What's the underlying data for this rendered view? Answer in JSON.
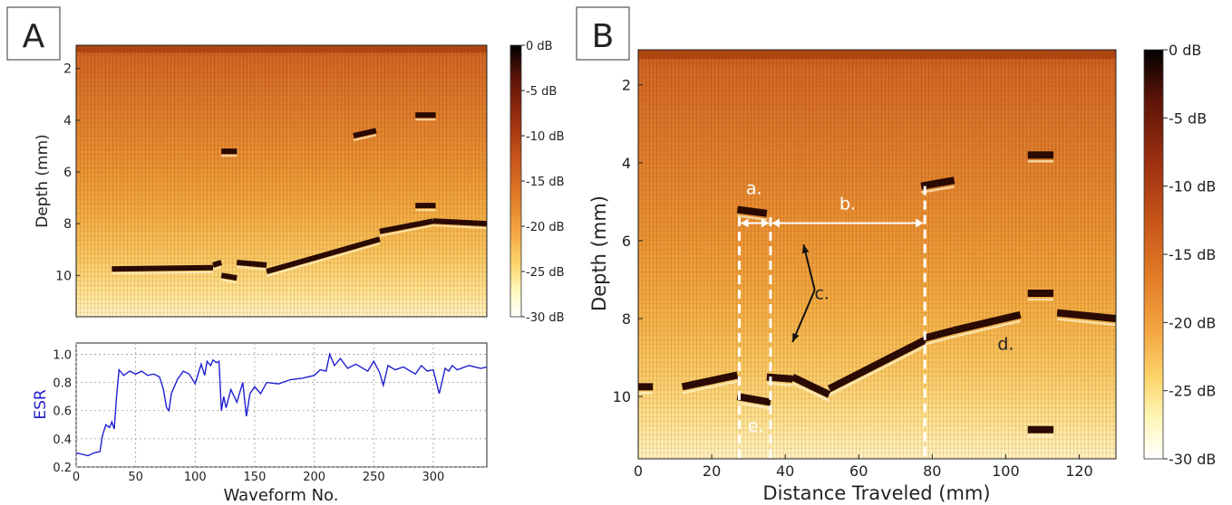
{
  "panel_a": {
    "letter": "A",
    "ylabel": "Depth (mm)",
    "yticks": [
      "2",
      "4",
      "6",
      "8",
      "10"
    ],
    "colorbar_ticks": [
      "0 dB",
      "-5 dB",
      "-10 dB",
      "-15 dB",
      "-20 dB",
      "-25 dB",
      "-30 dB"
    ]
  },
  "panel_a_esr": {
    "ylabel": "ESR",
    "xlabel": "Waveform No.",
    "yticks": [
      "0.2",
      "0.4",
      "0.6",
      "0.8",
      "1.0"
    ],
    "xticks": [
      "0",
      "50",
      "100",
      "150",
      "200",
      "250",
      "300"
    ]
  },
  "panel_b": {
    "letter": "B",
    "ylabel": "Depth (mm)",
    "xlabel": "Distance Traveled (mm)",
    "yticks": [
      "2",
      "4",
      "6",
      "8",
      "10"
    ],
    "xticks": [
      "0",
      "20",
      "40",
      "60",
      "80",
      "100",
      "120"
    ],
    "colorbar_ticks": [
      "0 dB",
      "-5 dB",
      "-10 dB",
      "-15 dB",
      "-20 dB",
      "-25 dB",
      "-30 dB"
    ],
    "annotations": [
      "a.",
      "b.",
      "c.",
      "d.",
      "e."
    ]
  },
  "colors": {
    "esr_line": "#1f1fd0",
    "esr_label": "#1f1fd0",
    "colormap": [
      "#ffffff",
      "#fff7b8",
      "#fcd36a",
      "#f3a340",
      "#e07a25",
      "#c8561a",
      "#9e3111",
      "#5c1408",
      "#000000"
    ]
  },
  "chart_data": [
    {
      "type": "heatmap",
      "panel": "A",
      "ylabel": "Depth (mm)",
      "ylim": [
        11.6,
        1.1
      ],
      "xlim": [
        0,
        345
      ],
      "colorbar": {
        "range_db": [
          -30,
          0
        ]
      },
      "interfaces": [
        {
          "x": [
            30,
            115
          ],
          "depth": [
            9.75,
            9.7
          ]
        },
        {
          "x": [
            115,
            122
          ],
          "depth": [
            9.6,
            9.5
          ]
        },
        {
          "x": [
            122,
            135
          ],
          "depth": [
            10.0,
            10.1
          ]
        },
        {
          "x": [
            135,
            160
          ],
          "depth": [
            9.5,
            9.6
          ]
        },
        {
          "x": [
            160,
            255
          ],
          "depth": [
            9.85,
            8.6
          ]
        },
        {
          "x": [
            255,
            300
          ],
          "depth": [
            8.3,
            7.9
          ]
        },
        {
          "x": [
            300,
            345
          ],
          "depth": [
            7.9,
            8.0
          ]
        },
        {
          "x": [
            122,
            135
          ],
          "depth": [
            5.2,
            5.2
          ]
        },
        {
          "x": [
            233,
            252
          ],
          "depth": [
            4.6,
            4.4
          ]
        },
        {
          "x": [
            285,
            302
          ],
          "depth": [
            3.8,
            3.8
          ]
        },
        {
          "x": [
            285,
            302
          ],
          "depth": [
            7.3,
            7.3
          ]
        }
      ]
    },
    {
      "type": "line",
      "panel": "A-ESR",
      "xlabel": "Waveform No.",
      "ylabel": "ESR",
      "xlim": [
        0,
        345
      ],
      "ylim": [
        0.2,
        1.08
      ],
      "grid": true,
      "series": [
        {
          "x": [
            0,
            5,
            10,
            15,
            20,
            22,
            25,
            28,
            30,
            32,
            34,
            36,
            40,
            45,
            50,
            55,
            60,
            65,
            70,
            73,
            76,
            78,
            80,
            85,
            90,
            95,
            100,
            105,
            108,
            110,
            113,
            115,
            118,
            120,
            122,
            124,
            126,
            130,
            135,
            140,
            143,
            146,
            150,
            155,
            160,
            170,
            180,
            190,
            200,
            205,
            210,
            213,
            217,
            222,
            228,
            235,
            245,
            250,
            255,
            258,
            262,
            268,
            275,
            285,
            290,
            295,
            300,
            305,
            310,
            313,
            316,
            320,
            330,
            340,
            345
          ],
          "values": [
            0.3,
            0.29,
            0.28,
            0.3,
            0.31,
            0.42,
            0.5,
            0.48,
            0.52,
            0.47,
            0.7,
            0.89,
            0.85,
            0.88,
            0.86,
            0.88,
            0.85,
            0.86,
            0.84,
            0.76,
            0.62,
            0.6,
            0.72,
            0.82,
            0.88,
            0.86,
            0.79,
            0.93,
            0.85,
            0.95,
            0.92,
            0.96,
            0.94,
            0.95,
            0.6,
            0.7,
            0.62,
            0.75,
            0.66,
            0.8,
            0.56,
            0.72,
            0.77,
            0.72,
            0.8,
            0.79,
            0.82,
            0.83,
            0.85,
            0.89,
            0.88,
            1.0,
            0.92,
            0.97,
            0.9,
            0.93,
            0.88,
            0.95,
            0.87,
            0.78,
            0.92,
            0.89,
            0.91,
            0.86,
            0.92,
            0.88,
            0.89,
            0.72,
            0.9,
            0.88,
            0.92,
            0.89,
            0.92,
            0.9,
            0.91
          ]
        }
      ]
    },
    {
      "type": "heatmap",
      "panel": "B",
      "xlabel": "Distance Traveled (mm)",
      "ylabel": "Depth (mm)",
      "xlim": [
        0,
        130
      ],
      "ylim": [
        11.6,
        1.1
      ],
      "colorbar": {
        "range_db": [
          -30,
          0
        ]
      },
      "interfaces": [
        {
          "x": [
            0,
            4
          ],
          "depth": [
            9.75,
            9.75
          ]
        },
        {
          "x": [
            12,
            27
          ],
          "depth": [
            9.75,
            9.45
          ]
        },
        {
          "x": [
            27,
            36
          ],
          "depth": [
            10.0,
            10.15
          ]
        },
        {
          "x": [
            27,
            35
          ],
          "depth": [
            5.2,
            5.3
          ]
        },
        {
          "x": [
            35,
            42
          ],
          "depth": [
            9.5,
            9.55
          ]
        },
        {
          "x": [
            42,
            52
          ],
          "depth": [
            9.5,
            9.95
          ]
        },
        {
          "x": [
            52,
            78
          ],
          "depth": [
            9.8,
            8.55
          ]
        },
        {
          "x": [
            77,
            86
          ],
          "depth": [
            4.6,
            4.45
          ]
        },
        {
          "x": [
            78,
            86
          ],
          "depth": [
            8.5,
            8.3
          ]
        },
        {
          "x": [
            86,
            104
          ],
          "depth": [
            8.3,
            7.9
          ]
        },
        {
          "x": [
            106,
            113
          ],
          "depth": [
            3.8,
            3.8
          ]
        },
        {
          "x": [
            106,
            113
          ],
          "depth": [
            7.35,
            7.35
          ]
        },
        {
          "x": [
            106,
            113
          ],
          "depth": [
            10.85,
            10.85
          ]
        },
        {
          "x": [
            114,
            130
          ],
          "depth": [
            7.85,
            8.0
          ]
        }
      ],
      "markers": {
        "dashed_x": [
          27.5,
          36,
          78
        ]
      },
      "labels": [
        {
          "text": "a.",
          "x": 31.5,
          "depth": 4.8
        },
        {
          "text": "b.",
          "x": 57,
          "depth": 5.2
        },
        {
          "text": "c.",
          "x": 50,
          "depth": 7.5
        },
        {
          "text": "d.",
          "x": 100,
          "depth": 8.8
        },
        {
          "text": "e.",
          "x": 32,
          "depth": 10.9
        }
      ]
    }
  ]
}
